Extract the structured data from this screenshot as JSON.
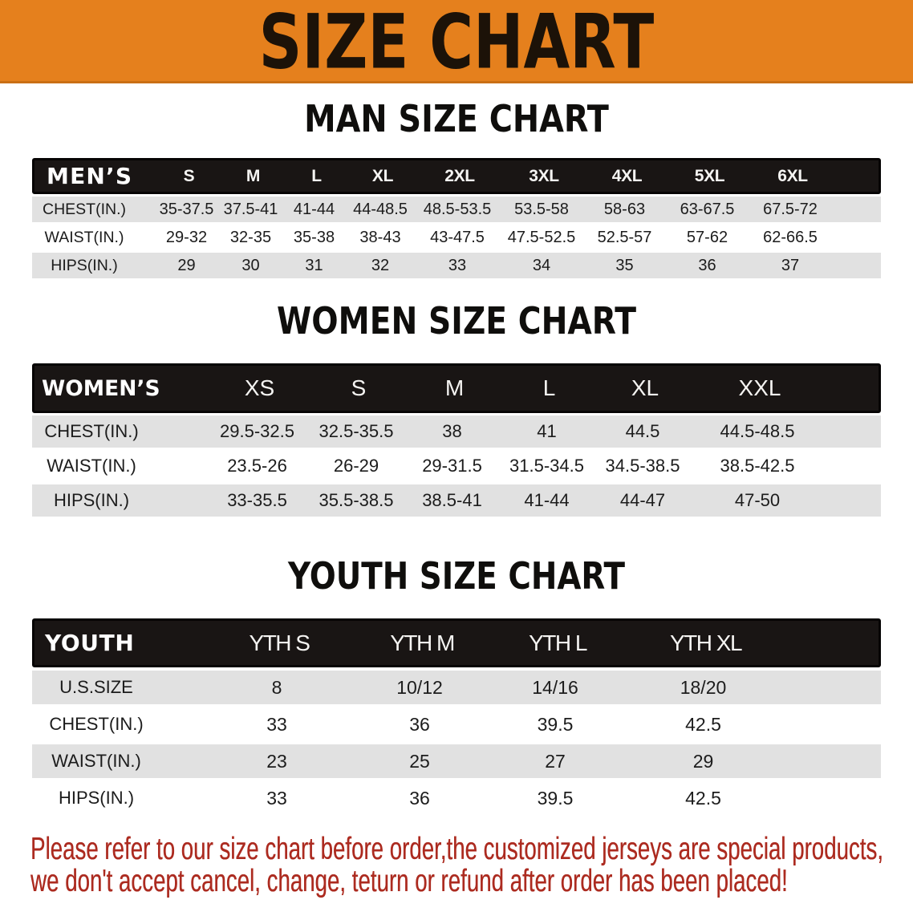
{
  "banner": {
    "title": "SIZE CHART",
    "background_color": "#E5801D",
    "text_color": "#1C1208"
  },
  "sections": [
    {
      "id": "man",
      "heading": "MAN SIZE CHART",
      "table": {
        "header": [
          "MEN’S",
          "S",
          "M",
          "L",
          "XL",
          "2XL",
          "3XL",
          "4XL",
          "5XL",
          "6XL"
        ],
        "rows": [
          [
            "CHEST(IN.)",
            "35-37.5",
            "37.5-41",
            "41-44",
            "44-48.5",
            "48.5-53.5",
            "53.5-58",
            "58-63",
            "63-67.5",
            "67.5-72"
          ],
          [
            "WAIST(IN.)",
            "29-32",
            "32-35",
            "35-38",
            "38-43",
            "43-47.5",
            "47.5-52.5",
            "52.5-57",
            "57-62",
            "62-66.5"
          ],
          [
            "HIPS(IN.)",
            "29",
            "30",
            "31",
            "32",
            "33",
            "34",
            "35",
            "36",
            "37"
          ]
        ]
      }
    },
    {
      "id": "women",
      "heading": "WOMEN SIZE CHART",
      "table": {
        "header": [
          "WOMEN’S",
          "XS",
          "S",
          "M",
          "L",
          "XL",
          "XXL"
        ],
        "rows": [
          [
            "CHEST(IN.)",
            "29.5-32.5",
            "32.5-35.5",
            "38",
            "41",
            "44.5",
            "44.5-48.5"
          ],
          [
            "WAIST(IN.)",
            "23.5-26",
            "26-29",
            "29-31.5",
            "31.5-34.5",
            "34.5-38.5",
            "38.5-42.5"
          ],
          [
            "HIPS(IN.)",
            "33-35.5",
            "35.5-38.5",
            "38.5-41",
            "41-44",
            "44-47",
            "47-50"
          ]
        ]
      }
    },
    {
      "id": "youth",
      "heading": "YOUTH SIZE CHART",
      "table": {
        "header": [
          "YOUTH",
          "YTH S",
          "YTH M",
          "YTH L",
          "YTH XL"
        ],
        "rows": [
          [
            "U.S.SIZE",
            "8",
            "10/12",
            "14/16",
            "18/20"
          ],
          [
            "CHEST(IN.)",
            "33",
            "36",
            "39.5",
            "42.5"
          ],
          [
            "WAIST(IN.)",
            "23",
            "25",
            "27",
            "29"
          ],
          [
            "HIPS(IN.)",
            "33",
            "36",
            "39.5",
            "42.5"
          ]
        ]
      }
    }
  ],
  "disclaimer": {
    "lines": [
      "Please refer to our size chart before order,the customized jerseys are special products,",
      "we don't accept cancel, change, teturn or refund after order has been placed!"
    ],
    "text_color": "#AC2B20"
  },
  "row_colors": {
    "striped": "#E1E1E1",
    "plain": "#FFFFFF"
  },
  "header_bar_color": "#191514"
}
